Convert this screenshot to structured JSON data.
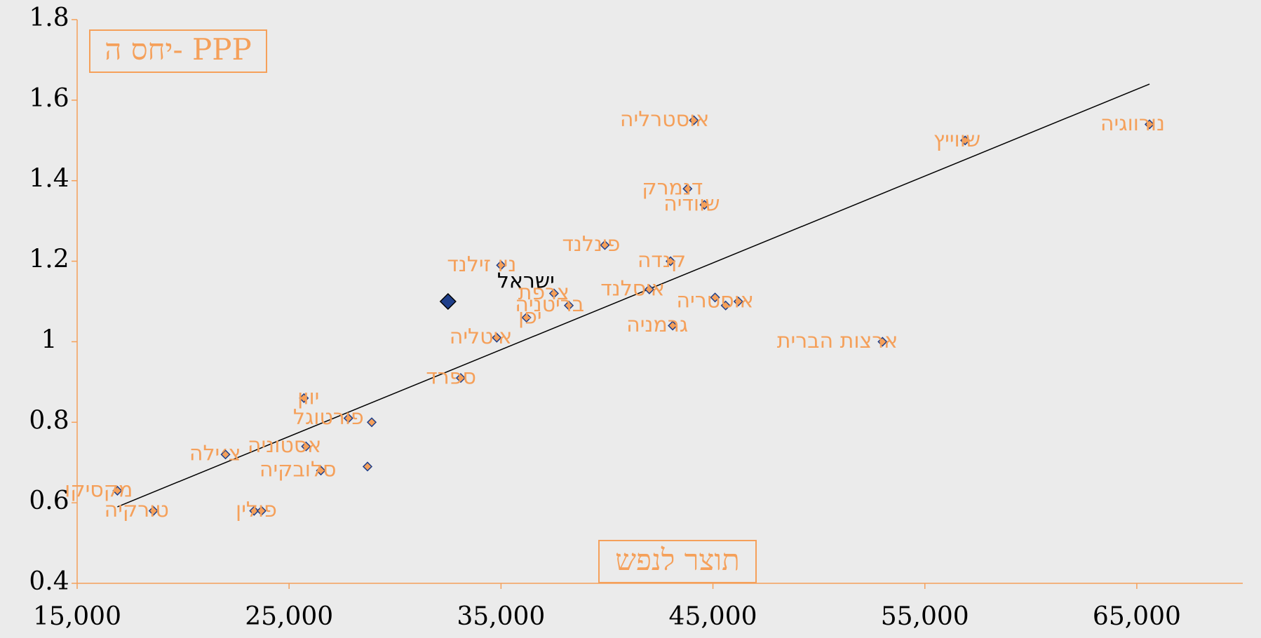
{
  "chart_data": {
    "type": "scatter",
    "x_axis_label": "תוצר לנפש",
    "y_axis_label": "יחס ה- PPP",
    "xlim": [
      15000,
      70000
    ],
    "xticks": [
      {
        "value": 15000,
        "label": "15,000"
      },
      {
        "value": 25000,
        "label": "25,000"
      },
      {
        "value": 35000,
        "label": "35,000"
      },
      {
        "value": 45000,
        "label": "45,000"
      },
      {
        "value": 55000,
        "label": "55,000"
      },
      {
        "value": 65000,
        "label": "65,000"
      }
    ],
    "ylim": [
      0.4,
      1.8
    ],
    "yticks": [
      {
        "value": 0.4,
        "label": "0.4"
      },
      {
        "value": 0.6,
        "label": "0.6"
      },
      {
        "value": 0.8,
        "label": "0.8"
      },
      1,
      {
        "value": 1.2,
        "label": "1.2"
      },
      {
        "value": 1.4,
        "label": "1.4"
      },
      {
        "value": 1.6,
        "label": "1.6"
      },
      {
        "value": 1.8,
        "label": "1.8"
      }
    ],
    "labels": [
      "מקסיקו",
      "טורקיה",
      "צ׳ילה",
      null,
      "פולין",
      "יוון",
      "אסטוניה",
      "סלובקיה",
      null,
      "פורטוגל",
      null,
      "ספרד",
      "איטליה",
      "יפן",
      "ניו זילנד",
      "ישראל",
      "צרפת",
      "בריטניה",
      "פינלנד",
      "איסלנד",
      "קנדה",
      "גרמניה",
      null,
      null,
      "אוסטריה",
      "דנמרק",
      "שוודיה",
      "אוסטרליה",
      "ארצות הברית",
      "שווייץ",
      "נורווגיה"
    ],
    "x": [
      16900,
      18600,
      22000,
      23350,
      23700,
      25700,
      25800,
      26500,
      28700,
      27800,
      28900,
      33100,
      34800,
      36200,
      35000,
      32500,
      37500,
      38200,
      39900,
      42000,
      43000,
      43100,
      45100,
      45600,
      46200,
      43800,
      44600,
      44100,
      53000,
      56900,
      65600
    ],
    "values": [
      0.63,
      0.58,
      0.72,
      0.58,
      0.58,
      0.86,
      0.74,
      0.68,
      0.69,
      0.81,
      0.8,
      0.91,
      1.01,
      1.06,
      1.19,
      1.1,
      1.12,
      1.09,
      1.24,
      1.13,
      1.2,
      1.04,
      1.11,
      1.09,
      1.1,
      1.38,
      1.34,
      1.55,
      1,
      1.5,
      1.54
    ],
    "color": "#f5a05a",
    "highlight_color": "#1f3f8a",
    "highlight_label_color": "#000000",
    "highlight_index": 15,
    "trendline": {
      "x": [
        16900,
        65600
      ],
      "y": [
        0.59,
        1.64
      ],
      "color": "#000000"
    }
  }
}
